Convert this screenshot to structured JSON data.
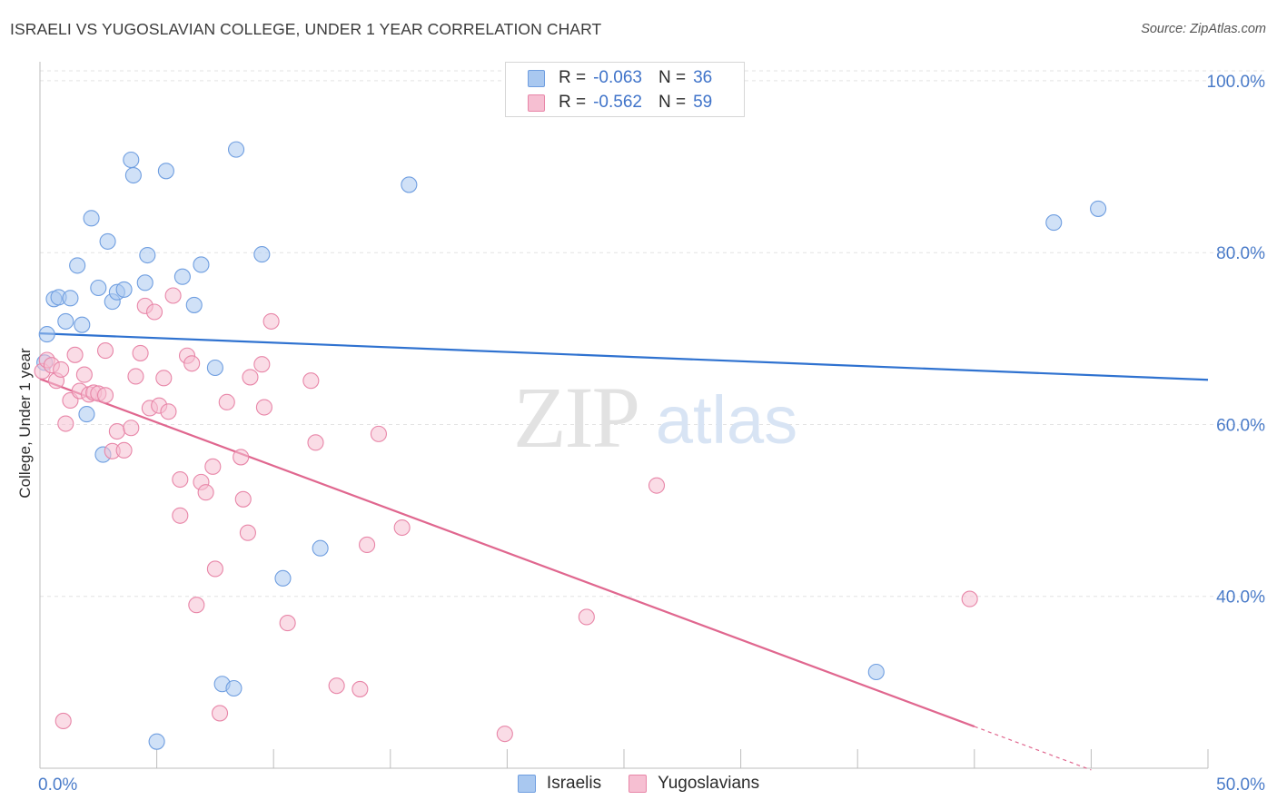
{
  "chart_data": {
    "type": "scatter",
    "title": "ISRAELI VS YUGOSLAVIAN COLLEGE, UNDER 1 YEAR CORRELATION CHART",
    "source": "Source: ZipAtlas.com",
    "xlabel": "",
    "ylabel": "College, Under 1 year",
    "xlim": [
      0,
      50
    ],
    "ylim": [
      20,
      102
    ],
    "x_tick_labels": [
      "0.0%",
      "50.0%"
    ],
    "y_ticks": [
      40,
      60,
      80,
      100
    ],
    "y_tick_labels": [
      "40.0%",
      "60.0%",
      "80.0%",
      "100.0%"
    ],
    "grid": true,
    "watermark": "ZIPatlas",
    "stats": [
      {
        "r_label": "R =",
        "r": "-0.063",
        "n_label": "N =",
        "n": "36"
      },
      {
        "r_label": "R =",
        "r": "-0.562",
        "n_label": "N =",
        "n": "59"
      }
    ],
    "series": [
      {
        "name": "Israelis",
        "color": "#a9c8f0",
        "edge": "#6f9ee0",
        "line_color": "#2f72d0",
        "trend": {
          "x0": 0.0,
          "y0": 70.6,
          "x1": 50.0,
          "y1": 65.2,
          "dash_from": 50.0
        },
        "points": [
          [
            0.3,
            70.5
          ],
          [
            0.6,
            74.6
          ],
          [
            0.8,
            74.8
          ],
          [
            1.1,
            72.0
          ],
          [
            1.3,
            74.7
          ],
          [
            1.6,
            78.5
          ],
          [
            1.8,
            71.6
          ],
          [
            2.0,
            61.2
          ],
          [
            2.2,
            84.0
          ],
          [
            2.5,
            75.9
          ],
          [
            2.7,
            56.5
          ],
          [
            2.9,
            81.3
          ],
          [
            3.1,
            74.3
          ],
          [
            3.3,
            75.4
          ],
          [
            3.6,
            75.7
          ],
          [
            3.9,
            90.8
          ],
          [
            4.0,
            89.0
          ],
          [
            4.5,
            76.5
          ],
          [
            4.6,
            79.7
          ],
          [
            5.0,
            23.1
          ],
          [
            5.4,
            89.5
          ],
          [
            6.1,
            77.2
          ],
          [
            6.6,
            73.9
          ],
          [
            6.9,
            78.6
          ],
          [
            7.5,
            66.6
          ],
          [
            7.8,
            29.8
          ],
          [
            8.3,
            29.3
          ],
          [
            8.4,
            92.0
          ],
          [
            9.5,
            79.8
          ],
          [
            10.4,
            42.1
          ],
          [
            12.0,
            45.6
          ],
          [
            15.8,
            87.9
          ],
          [
            35.8,
            31.2
          ],
          [
            43.4,
            83.5
          ],
          [
            45.3,
            85.1
          ],
          [
            0.2,
            67.2
          ]
        ]
      },
      {
        "name": "Yugoslavians",
        "color": "#f6bfd2",
        "edge": "#e886a8",
        "line_color": "#e0678f",
        "trend": {
          "x0": 0.0,
          "y0": 65.3,
          "x1": 45.0,
          "y1": 19.8,
          "dash_from": 40.0
        },
        "points": [
          [
            0.1,
            66.2
          ],
          [
            0.3,
            67.5
          ],
          [
            0.5,
            66.9
          ],
          [
            0.7,
            65.1
          ],
          [
            0.9,
            66.4
          ],
          [
            1.1,
            60.1
          ],
          [
            1.3,
            62.8
          ],
          [
            1.5,
            68.1
          ],
          [
            1.7,
            63.9
          ],
          [
            1.9,
            65.8
          ],
          [
            2.1,
            63.5
          ],
          [
            2.3,
            63.7
          ],
          [
            2.5,
            63.6
          ],
          [
            2.8,
            63.4
          ],
          [
            2.8,
            68.6
          ],
          [
            3.1,
            56.9
          ],
          [
            3.3,
            59.2
          ],
          [
            3.6,
            57.0
          ],
          [
            3.9,
            59.6
          ],
          [
            4.1,
            65.6
          ],
          [
            4.3,
            68.3
          ],
          [
            4.5,
            73.8
          ],
          [
            4.7,
            61.9
          ],
          [
            4.9,
            73.1
          ],
          [
            5.1,
            62.2
          ],
          [
            5.3,
            65.4
          ],
          [
            5.5,
            61.5
          ],
          [
            5.7,
            75.0
          ],
          [
            6.0,
            53.6
          ],
          [
            6.0,
            49.4
          ],
          [
            6.3,
            68.0
          ],
          [
            6.5,
            67.1
          ],
          [
            6.7,
            39.0
          ],
          [
            6.9,
            53.3
          ],
          [
            7.1,
            52.1
          ],
          [
            7.4,
            55.1
          ],
          [
            7.5,
            43.2
          ],
          [
            7.7,
            26.4
          ],
          [
            8.0,
            62.6
          ],
          [
            8.6,
            56.2
          ],
          [
            8.7,
            51.3
          ],
          [
            8.9,
            47.4
          ],
          [
            9.0,
            65.5
          ],
          [
            9.5,
            67.0
          ],
          [
            9.6,
            62.0
          ],
          [
            9.9,
            72.0
          ],
          [
            10.6,
            36.9
          ],
          [
            11.6,
            65.1
          ],
          [
            11.8,
            57.9
          ],
          [
            12.7,
            29.6
          ],
          [
            13.7,
            29.2
          ],
          [
            14.0,
            46.0
          ],
          [
            14.5,
            58.9
          ],
          [
            15.5,
            48.0
          ],
          [
            19.9,
            24.0
          ],
          [
            23.4,
            37.6
          ],
          [
            26.4,
            52.9
          ],
          [
            39.8,
            39.7
          ],
          [
            1.0,
            25.5
          ]
        ]
      }
    ]
  }
}
